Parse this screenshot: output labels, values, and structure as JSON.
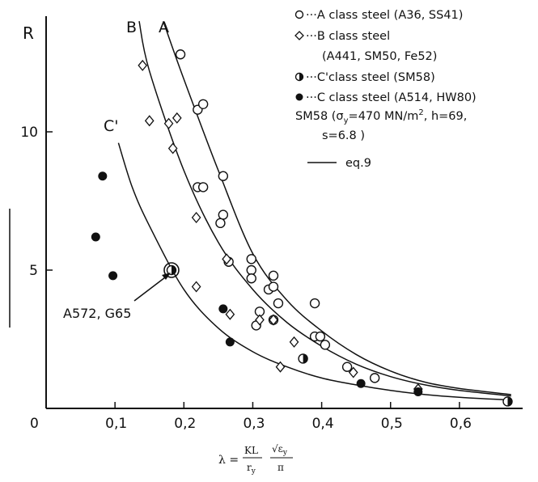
{
  "chart_data": {
    "type": "scatter",
    "title": "",
    "ylabel": "R",
    "xlabel_formula": {
      "lhs": "λ =",
      "frac1_num": "KL",
      "frac1_den": "r",
      "frac1_den_sub": "y",
      "frac2_num": "√ε",
      "frac2_num_sub": "y",
      "frac2_den": "π"
    },
    "xlim": [
      0,
      0.68
    ],
    "ylim": [
      0,
      14
    ],
    "x_ticks": [
      {
        "value": 0,
        "label": "0"
      },
      {
        "value": 0.1,
        "label": "0,1"
      },
      {
        "value": 0.2,
        "label": "0,2"
      },
      {
        "value": 0.3,
        "label": "0,3"
      },
      {
        "value": 0.4,
        "label": "0,4"
      },
      {
        "value": 0.5,
        "label": "0,5"
      },
      {
        "value": 0.6,
        "label": "0,6"
      }
    ],
    "y_ticks": [
      {
        "value": 5,
        "label": "5"
      },
      {
        "value": 10,
        "label": "10"
      }
    ],
    "curves": [
      {
        "name": "A",
        "label": "A",
        "x_start": 0.17,
        "x_end": 0.675,
        "points": [
          [
            0.17,
            14
          ],
          [
            0.2,
            11.9
          ],
          [
            0.25,
            8.6
          ],
          [
            0.3,
            5.6
          ],
          [
            0.35,
            3.9
          ],
          [
            0.4,
            2.8
          ],
          [
            0.45,
            1.95
          ],
          [
            0.5,
            1.35
          ],
          [
            0.55,
            0.95
          ],
          [
            0.6,
            0.72
          ],
          [
            0.675,
            0.5
          ]
        ]
      },
      {
        "name": "B",
        "label": "B",
        "x_start": 0.135,
        "x_end": 0.675,
        "points": [
          [
            0.135,
            14
          ],
          [
            0.15,
            12.2
          ],
          [
            0.2,
            8.6
          ],
          [
            0.25,
            6.0
          ],
          [
            0.3,
            4.3
          ],
          [
            0.35,
            3.1
          ],
          [
            0.4,
            2.25
          ],
          [
            0.45,
            1.6
          ],
          [
            0.5,
            1.15
          ],
          [
            0.55,
            0.85
          ],
          [
            0.6,
            0.65
          ],
          [
            0.675,
            0.45
          ]
        ]
      },
      {
        "name": "C'",
        "label": "C'",
        "x_start": 0.105,
        "x_end": 0.675,
        "points": [
          [
            0.105,
            9.6
          ],
          [
            0.125,
            8.0
          ],
          [
            0.15,
            6.6
          ],
          [
            0.2,
            4.3
          ],
          [
            0.25,
            2.9
          ],
          [
            0.3,
            2.05
          ],
          [
            0.35,
            1.5
          ],
          [
            0.4,
            1.1
          ],
          [
            0.45,
            0.85
          ],
          [
            0.5,
            0.65
          ],
          [
            0.55,
            0.5
          ],
          [
            0.6,
            0.4
          ],
          [
            0.675,
            0.3
          ]
        ]
      }
    ],
    "series": [
      {
        "name": "A class steel (A36, SS41)",
        "marker": "open-circle",
        "points": [
          [
            0.195,
            12.8
          ],
          [
            0.22,
            10.8
          ],
          [
            0.228,
            11.0
          ],
          [
            0.22,
            8.0
          ],
          [
            0.228,
            8.0
          ],
          [
            0.257,
            8.4
          ],
          [
            0.257,
            7.0
          ],
          [
            0.253,
            6.7
          ],
          [
            0.265,
            5.3
          ],
          [
            0.298,
            5.4
          ],
          [
            0.298,
            5.0
          ],
          [
            0.298,
            4.7
          ],
          [
            0.323,
            4.3
          ],
          [
            0.33,
            4.8
          ],
          [
            0.33,
            4.4
          ],
          [
            0.337,
            3.8
          ],
          [
            0.31,
            3.5
          ],
          [
            0.305,
            3.0
          ],
          [
            0.33,
            3.2
          ],
          [
            0.39,
            3.8
          ],
          [
            0.39,
            2.6
          ],
          [
            0.398,
            2.6
          ],
          [
            0.405,
            2.3
          ],
          [
            0.437,
            1.5
          ],
          [
            0.477,
            1.1
          ]
        ]
      },
      {
        "name": "B class steel (A441, SM50, Fe52)",
        "marker": "open-diamond",
        "points": [
          [
            0.14,
            12.4
          ],
          [
            0.15,
            10.4
          ],
          [
            0.178,
            10.3
          ],
          [
            0.19,
            10.5
          ],
          [
            0.184,
            9.4
          ],
          [
            0.218,
            6.9
          ],
          [
            0.218,
            4.4
          ],
          [
            0.262,
            5.4
          ],
          [
            0.267,
            3.4
          ],
          [
            0.31,
            3.2
          ],
          [
            0.33,
            3.2
          ],
          [
            0.34,
            1.5
          ],
          [
            0.36,
            2.4
          ],
          [
            0.446,
            1.3
          ],
          [
            0.54,
            0.7
          ]
        ]
      },
      {
        "name": "C'class steel (SM58)",
        "marker": "half-filled-circle",
        "points": [
          [
            0.182,
            5.0
          ],
          [
            0.373,
            1.8
          ],
          [
            0.67,
            0.25
          ]
        ]
      },
      {
        "name": "C class steel (A514, HW80)",
        "marker": "filled-circle",
        "points": [
          [
            0.082,
            8.4
          ],
          [
            0.072,
            6.2
          ],
          [
            0.097,
            4.8
          ],
          [
            0.257,
            3.6
          ],
          [
            0.267,
            2.4
          ],
          [
            0.457,
            0.9
          ],
          [
            0.54,
            0.6
          ]
        ]
      }
    ],
    "annotations": [
      {
        "text": "A572, G65",
        "points_to": [
          0.182,
          5.0
        ]
      }
    ],
    "legend": {
      "placement": "top-right",
      "entries": [
        {
          "marker": "open-circle",
          "lines": [
            "···A class steel (A36, SS41)"
          ]
        },
        {
          "marker": "open-diamond",
          "lines": [
            "···B class steel",
            "(A441,  SM50,  Fe52)"
          ]
        },
        {
          "marker": "half-filled-circle",
          "lines": [
            "···C'class steel (SM58)"
          ]
        },
        {
          "marker": "filled-circle",
          "lines": [
            "···C class steel (A514, HW80)"
          ]
        }
      ],
      "note_lines": [
        "SM58 (σ",
        "=470 MN/m",
        ", h=69,",
        "s=6.8 )"
      ],
      "note_sub": "y",
      "note_sup": "2",
      "line_entry": "eq.9"
    }
  }
}
